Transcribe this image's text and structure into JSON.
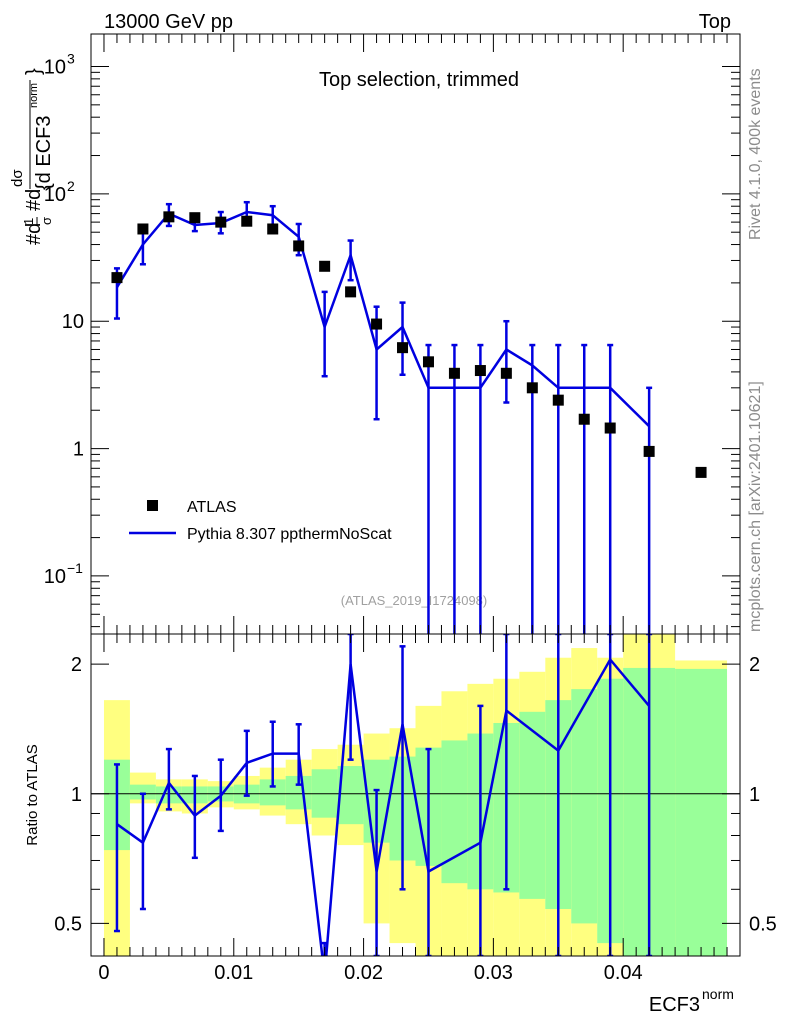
{
  "header": {
    "left": "13000 GeV pp",
    "right": "Top"
  },
  "side_labels": {
    "rivet": "Rivet 4.1.0,  400k events",
    "mcplots": "mcplots.cern.ch [arXiv:2401.10621]"
  },
  "colors": {
    "mc": "#0000e0",
    "band_inner": "#99ff99",
    "band_outer": "#ffff80",
    "data": "#000000"
  },
  "chart_data": [
    {
      "type": "scatter",
      "panel": "main",
      "title": "Top selection, trimmed",
      "analysis_id": "(ATLAS_2019_I1724098)",
      "xlabel": "ECF3",
      "xlabel_sup": "norm",
      "ylabel": "#d¹⁄σ #d dσ ⁄ {d ECF3norm}",
      "y_scale": "log",
      "xlim": [
        -0.001,
        0.049
      ],
      "ylim": [
        0.035,
        1800
      ],
      "y_ticks": [
        {
          "v": 0.1,
          "t": "10",
          "sup": "−1"
        },
        {
          "v": 1,
          "t": "1",
          "sup": ""
        },
        {
          "v": 10,
          "t": "10",
          "sup": ""
        },
        {
          "v": 100,
          "t": "10",
          "sup": "2"
        },
        {
          "v": 1000,
          "t": "10",
          "sup": "3"
        }
      ],
      "legend": [
        {
          "label": "ATLAS",
          "kind": "marker"
        },
        {
          "label": "Pythia 8.307 ppthermNoScat",
          "kind": "line"
        }
      ],
      "series": [
        {
          "name": "ATLAS",
          "x": [
            0.001,
            0.003,
            0.005,
            0.007,
            0.009,
            0.011,
            0.013,
            0.015,
            0.017,
            0.019,
            0.021,
            0.023,
            0.025,
            0.027,
            0.029,
            0.031,
            0.033,
            0.035,
            0.037,
            0.039,
            0.042,
            0.046
          ],
          "values": [
            22,
            53,
            66,
            65,
            60,
            61,
            53,
            39,
            27,
            17,
            9.5,
            6.2,
            4.8,
            3.9,
            4.1,
            3.9,
            3.0,
            2.4,
            1.7,
            1.45,
            0.95,
            0.65
          ]
        },
        {
          "name": "Pythia 8.307 ppthermNoScat",
          "x": [
            0.001,
            0.003,
            0.005,
            0.007,
            0.009,
            0.011,
            0.013,
            0.015,
            0.017,
            0.019,
            0.021,
            0.023,
            0.025,
            0.027,
            0.029,
            0.031,
            0.033,
            0.035,
            0.037,
            0.039,
            0.042
          ],
          "values": [
            18.5,
            40,
            70,
            57,
            59,
            72,
            68,
            46,
            9,
            33,
            6,
            9,
            3,
            3,
            3,
            6,
            4.5,
            3,
            3,
            3,
            1.5
          ],
          "err_lo": [
            10.5,
            28,
            56,
            51,
            49,
            60,
            55,
            33,
            3.7,
            21,
            1.7,
            3.8,
            0,
            0,
            0,
            2.3,
            0,
            0,
            0,
            0,
            0
          ],
          "err_hi": [
            26,
            52,
            83,
            63,
            72,
            86,
            80,
            58,
            17,
            43,
            13,
            14,
            6.5,
            6.5,
            6.5,
            10,
            6.5,
            6.5,
            6.5,
            6.5,
            3
          ]
        }
      ]
    },
    {
      "type": "line",
      "panel": "ratio",
      "ylabel": "Ratio to ATLAS",
      "xlabel": "ECF3",
      "xlabel_sup": "norm",
      "y_scale": "log",
      "xlim": [
        -0.001,
        0.049
      ],
      "ylim": [
        0.42,
        2.35
      ],
      "y_ticks": [
        {
          "v": 0.5,
          "t": "0.5"
        },
        {
          "v": 1,
          "t": "1"
        },
        {
          "v": 2,
          "t": "2"
        }
      ],
      "x_ticks": [
        {
          "v": 0,
          "t": "0"
        },
        {
          "v": 0.01,
          "t": "0.01"
        },
        {
          "v": 0.02,
          "t": "0.02"
        },
        {
          "v": 0.03,
          "t": "0.03"
        },
        {
          "v": 0.04,
          "t": "0.04"
        }
      ],
      "bands": {
        "edges": [
          0,
          0.002,
          0.004,
          0.006,
          0.008,
          0.01,
          0.012,
          0.014,
          0.016,
          0.018,
          0.02,
          0.022,
          0.024,
          0.026,
          0.028,
          0.03,
          0.032,
          0.034,
          0.036,
          0.038,
          0.04,
          0.044,
          0.048
        ],
        "outer_lo": [
          0.37,
          0.95,
          0.91,
          0.9,
          0.93,
          0.92,
          0.89,
          0.85,
          0.8,
          0.76,
          0.5,
          0.45,
          0.42,
          0.42,
          0.42,
          0.42,
          0.42,
          0.42,
          0.42,
          0.42,
          0.42,
          0.42
        ],
        "outer_hi": [
          1.65,
          1.12,
          1.08,
          1.08,
          1.07,
          1.1,
          1.15,
          1.2,
          1.27,
          1.3,
          1.38,
          1.42,
          1.6,
          1.73,
          1.8,
          1.85,
          1.92,
          2.07,
          2.18,
          2.07,
          2.35,
          2.04
        ],
        "inner_lo": [
          0.74,
          0.97,
          0.95,
          0.95,
          0.96,
          0.95,
          0.94,
          0.92,
          0.88,
          0.85,
          0.77,
          0.7,
          0.68,
          0.62,
          0.6,
          0.59,
          0.57,
          0.54,
          0.5,
          0.45,
          0.42,
          0.42
        ],
        "inner_hi": [
          1.2,
          1.05,
          1.04,
          1.04,
          1.04,
          1.05,
          1.08,
          1.1,
          1.14,
          1.16,
          1.2,
          1.22,
          1.28,
          1.33,
          1.38,
          1.46,
          1.55,
          1.65,
          1.75,
          1.85,
          1.96,
          1.95
        ]
      },
      "series": [
        {
          "name": "Pythia 8.307 ppthermNoScat / ATLAS",
          "x": [
            0.001,
            0.003,
            0.005,
            0.007,
            0.009,
            0.011,
            0.013,
            0.015,
            0.017,
            0.019,
            0.021,
            0.023,
            0.025,
            0.029,
            0.031,
            0.035,
            0.039,
            0.042
          ],
          "values": [
            0.85,
            0.77,
            1.06,
            0.89,
            0.99,
            1.18,
            1.24,
            1.24,
            0.35,
            2.0,
            0.66,
            1.45,
            0.66,
            0.77,
            1.56,
            1.26,
            2.05,
            1.6
          ],
          "err_lo": [
            0.48,
            0.54,
            0.92,
            0.71,
            0.82,
            0.99,
            1.04,
            1.05,
            0.3,
            1.2,
            0.3,
            0.6,
            0.3,
            0.3,
            0.6,
            0.3,
            0.3,
            0.3
          ],
          "err_hi": [
            1.17,
            1.0,
            1.27,
            1.1,
            1.2,
            1.4,
            1.47,
            1.45,
            0.45,
            2.4,
            1.02,
            2.2,
            1.27,
            1.6,
            2.6,
            2.6,
            2.6,
            2.6
          ]
        }
      ],
      "reference_line": 1
    }
  ]
}
